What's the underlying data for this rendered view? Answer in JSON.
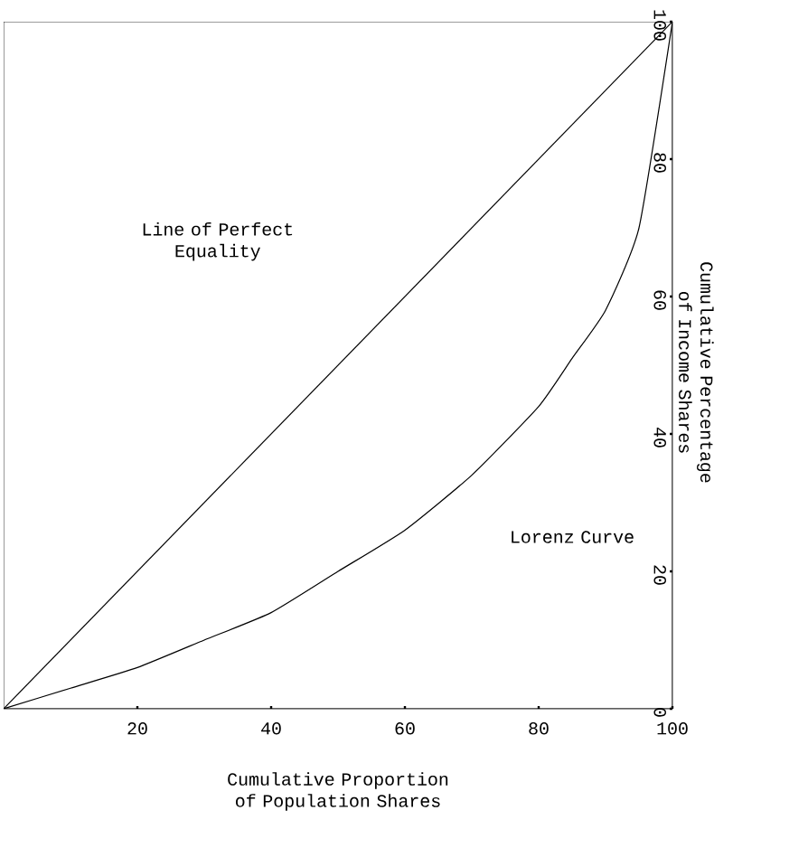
{
  "chart_data": {
    "type": "line",
    "xlabel": "Cumulative Proportion of Population Shares",
    "ylabel": "Cumulative Percentage of Income Shares",
    "xlim": [
      0,
      100
    ],
    "ylim": [
      0,
      100
    ],
    "xticks": [
      20,
      40,
      60,
      80,
      100
    ],
    "yticks": [
      0,
      20,
      40,
      60,
      80,
      100
    ],
    "grid": false,
    "marker": "none",
    "line_style": "solid",
    "series": [
      {
        "color": "#000000",
        "x": [
          0,
          100
        ],
        "values": [
          0,
          100
        ]
      },
      {
        "color": "#000000",
        "x": [
          0,
          10,
          20,
          30,
          40,
          50,
          60,
          70,
          80,
          85,
          90,
          95,
          100
        ],
        "values": [
          0,
          3,
          6,
          10,
          14,
          20,
          26,
          34,
          44,
          51,
          58,
          70,
          100
        ]
      }
    ],
    "annotations": [
      "Line of Perfect Equality",
      "Lorenz Curve"
    ]
  }
}
